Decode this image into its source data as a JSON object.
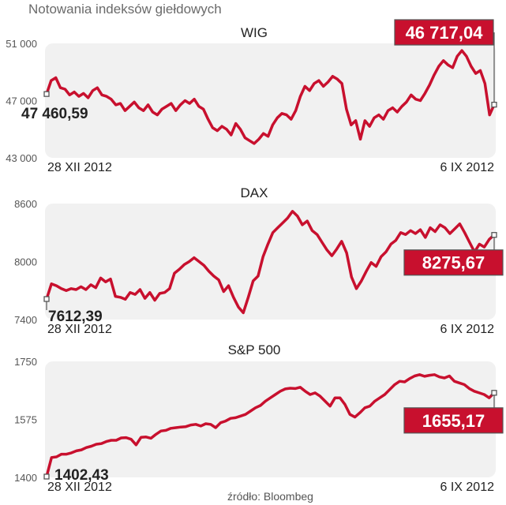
{
  "header": {
    "title": "Notowania indeksów giełdowych"
  },
  "source": "źródło: Bloombeg",
  "colors": {
    "line": "#c8102e",
    "panel": "#f1f1f1",
    "label_bg": "#c8102e",
    "label_text": "#ffffff",
    "text": "#222222",
    "axis_text": "#555555"
  },
  "chart_data": [
    {
      "type": "line",
      "title": "WIG",
      "ylim": [
        43000,
        51000
      ],
      "y_ticks": [
        51000,
        47000,
        43000
      ],
      "y_tick_labels": [
        "51 000",
        "47 000",
        "43 000"
      ],
      "x_start_label": "28 XII 2012",
      "x_end_label": "6 IX 2012",
      "start_value": 47460.59,
      "start_label": "47 460,59",
      "end_value": 46717.04,
      "end_label": "46 717,04",
      "series": [
        {
          "values": [
            47460.59,
            48400,
            48600,
            47900,
            47800,
            47400,
            47600,
            47300,
            47500,
            47200,
            47700,
            47900,
            47400,
            47300,
            47100,
            46700,
            46800,
            46300,
            46600,
            46900,
            46500,
            46300,
            46700,
            46200,
            46000,
            46400,
            46600,
            46800,
            46300,
            46700,
            47000,
            46800,
            47100,
            46600,
            46400,
            45700,
            45100,
            44900,
            45200,
            45000,
            44600,
            45400,
            45000,
            44400,
            44200,
            44000,
            44300,
            44700,
            44500,
            45300,
            45800,
            46100,
            46000,
            45700,
            46300,
            47300,
            48000,
            47700,
            48200,
            48400,
            48000,
            48300,
            48700,
            48500,
            48200,
            46400,
            45300,
            45600,
            44300,
            45600,
            45200,
            45800,
            46000,
            45700,
            46300,
            46500,
            46200,
            46600,
            46900,
            47400,
            47100,
            47000,
            47500,
            48100,
            48800,
            49400,
            49800,
            49500,
            49300,
            50100,
            50500,
            50100,
            49400,
            48900,
            49100,
            48200,
            46000,
            46717.04
          ]
        }
      ]
    },
    {
      "type": "line",
      "title": "DAX",
      "ylim": [
        7400,
        8600
      ],
      "y_ticks": [
        8600,
        8000,
        7400
      ],
      "y_tick_labels": [
        "8600",
        "8000",
        "7400"
      ],
      "x_start_label": "28 XII 2012",
      "x_end_label": "6 IX 2012",
      "start_value": 7612.39,
      "start_label": "7612,39",
      "end_value": 8275.67,
      "end_label": "8275,67",
      "series": [
        {
          "values": [
            7612.39,
            7770,
            7750,
            7720,
            7700,
            7720,
            7710,
            7740,
            7710,
            7760,
            7730,
            7830,
            7790,
            7820,
            7640,
            7630,
            7610,
            7680,
            7660,
            7710,
            7620,
            7680,
            7600,
            7670,
            7680,
            7720,
            7880,
            7920,
            7970,
            8000,
            8040,
            8000,
            7960,
            7900,
            7850,
            7810,
            7690,
            7750,
            7630,
            7530,
            7470,
            7630,
            7800,
            7850,
            8050,
            8180,
            8300,
            8350,
            8400,
            8450,
            8520,
            8470,
            8380,
            8420,
            8320,
            8280,
            8200,
            8120,
            8060,
            8130,
            8210,
            8090,
            7840,
            7720,
            7800,
            7900,
            7990,
            7950,
            8050,
            8100,
            8180,
            8220,
            8300,
            8280,
            8320,
            8290,
            8330,
            8250,
            8350,
            8310,
            8380,
            8350,
            8290,
            8340,
            8390,
            8300,
            8200,
            8100,
            8180,
            8150,
            8230,
            8275.67
          ]
        }
      ]
    },
    {
      "type": "line",
      "title": "S&P 500",
      "ylim": [
        1400,
        1750
      ],
      "y_ticks": [
        1750,
        1575,
        1400
      ],
      "y_tick_labels": [
        "1750",
        "1575",
        "1400"
      ],
      "x_start_label": "28 XII 2012",
      "x_end_label": "6 IX 2012",
      "start_value": 1402.43,
      "start_label": "1402,43",
      "end_value": 1655.17,
      "end_label": "1655,17",
      "series": [
        {
          "values": [
            1402.43,
            1460,
            1462,
            1470,
            1470,
            1474,
            1480,
            1483,
            1490,
            1494,
            1500,
            1502,
            1508,
            1512,
            1512,
            1519,
            1520,
            1515,
            1498,
            1521,
            1522,
            1518,
            1530,
            1540,
            1542,
            1548,
            1550,
            1552,
            1553,
            1558,
            1560,
            1555,
            1562,
            1560,
            1550,
            1565,
            1570,
            1578,
            1580,
            1585,
            1590,
            1600,
            1610,
            1617,
            1630,
            1640,
            1650,
            1660,
            1667,
            1669,
            1668,
            1672,
            1660,
            1650,
            1655,
            1645,
            1630,
            1615,
            1640,
            1640,
            1620,
            1590,
            1582,
            1595,
            1610,
            1615,
            1630,
            1640,
            1650,
            1665,
            1680,
            1690,
            1688,
            1698,
            1706,
            1710,
            1705,
            1708,
            1710,
            1703,
            1700,
            1706,
            1690,
            1685,
            1680,
            1668,
            1660,
            1655,
            1650,
            1640,
            1655.17
          ]
        }
      ]
    }
  ]
}
